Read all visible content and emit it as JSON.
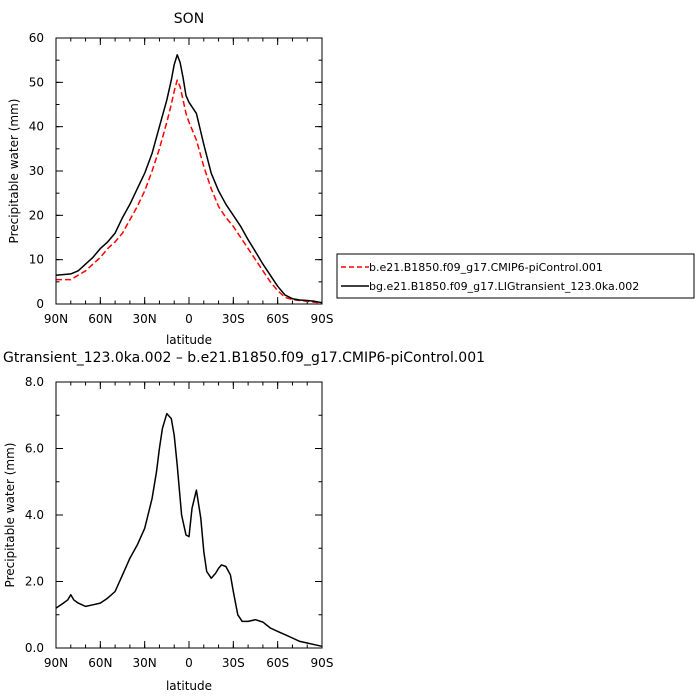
{
  "chart_data": [
    {
      "type": "line",
      "title": "SON",
      "xlabel": "latitude",
      "ylabel": "Precipitable water (mm)",
      "x_tick_labels": [
        "90N",
        "60N",
        "30N",
        "0",
        "30S",
        "60S",
        "90S"
      ],
      "x_tick_values": [
        90,
        60,
        30,
        0,
        -30,
        -60,
        -90
      ],
      "xlim": [
        90,
        -90
      ],
      "y_tick_labels": [
        "0",
        "10",
        "20",
        "30",
        "40",
        "50",
        "60"
      ],
      "y_tick_values": [
        0,
        10,
        20,
        30,
        40,
        50,
        60
      ],
      "ylim": [
        0,
        60
      ],
      "grid": false,
      "legend_position": "right",
      "series": [
        {
          "name": "b.e21.B1850.f09_g17.CMIP6-piControl.001",
          "color": "#ff0000",
          "dash": "dashed",
          "x": [
            90,
            80,
            75,
            70,
            60,
            55,
            50,
            45,
            40,
            35,
            30,
            25,
            20,
            15,
            12,
            10,
            8,
            6,
            4,
            2,
            0,
            -5,
            -10,
            -15,
            -20,
            -25,
            -30,
            -35,
            -40,
            -45,
            -50,
            -55,
            -60,
            -65,
            -70,
            -75,
            -80,
            -85,
            -90
          ],
          "y": [
            5.5,
            5.5,
            6.5,
            7.5,
            10.5,
            12.5,
            14,
            16,
            19,
            22,
            25.5,
            30,
            35,
            41,
            45,
            48,
            50.5,
            49,
            46,
            43,
            41,
            37,
            31,
            26,
            22,
            19.5,
            17.5,
            15,
            12.5,
            10,
            7.5,
            5,
            3,
            1.5,
            1,
            0.8,
            0.6,
            0.4,
            0.3
          ]
        },
        {
          "name": "bg.e21.B1850.f09_g17.LIGtransient_123.0ka.002",
          "color": "#000000",
          "dash": "solid",
          "x": [
            90,
            80,
            75,
            70,
            65,
            60,
            55,
            50,
            45,
            40,
            35,
            30,
            25,
            20,
            15,
            12,
            10,
            8,
            6,
            4,
            2,
            0,
            -5,
            -10,
            -15,
            -20,
            -25,
            -30,
            -35,
            -40,
            -45,
            -50,
            -55,
            -60,
            -65,
            -70,
            -75,
            -80,
            -85,
            -90
          ],
          "y": [
            6.5,
            6.8,
            7.5,
            9,
            10.5,
            12.5,
            14,
            16,
            19.5,
            22.5,
            26,
            29.5,
            34,
            40,
            46,
            50.5,
            54,
            56.2,
            54.5,
            51,
            47,
            45.5,
            43,
            36,
            29.5,
            25.5,
            22.5,
            20,
            17.5,
            14.5,
            11.8,
            9,
            6.5,
            4,
            2,
            1.2,
            0.9,
            0.8,
            0.6,
            0.3
          ]
        }
      ]
    },
    {
      "type": "line",
      "title": "Gtransient_123.0ka.002 – b.e21.B1850.f09_g17.CMIP6-piControl.001",
      "xlabel": "latitude",
      "ylabel": "Precipitable water (mm)",
      "x_tick_labels": [
        "90N",
        "60N",
        "30N",
        "0",
        "30S",
        "60S",
        "90S"
      ],
      "x_tick_values": [
        90,
        60,
        30,
        0,
        -30,
        -60,
        -90
      ],
      "xlim": [
        90,
        -90
      ],
      "y_tick_labels": [
        "0.0",
        "2.0",
        "4.0",
        "6.0",
        "8.0"
      ],
      "y_tick_values": [
        0,
        2,
        4,
        6,
        8
      ],
      "ylim": [
        0,
        8
      ],
      "grid": false,
      "series": [
        {
          "color": "#000000",
          "dash": "solid",
          "x": [
            90,
            85,
            82,
            80,
            78,
            75,
            70,
            65,
            60,
            55,
            50,
            45,
            40,
            35,
            30,
            25,
            22,
            20,
            18,
            15,
            12,
            10,
            8,
            5,
            2,
            0,
            -2,
            -5,
            -8,
            -10,
            -12,
            -15,
            -18,
            -20,
            -22,
            -25,
            -28,
            -30,
            -33,
            -36,
            -40,
            -45,
            -50,
            -55,
            -60,
            -65,
            -70,
            -75,
            -80,
            -85,
            -90
          ],
          "y": [
            1.2,
            1.35,
            1.45,
            1.6,
            1.45,
            1.35,
            1.25,
            1.3,
            1.35,
            1.5,
            1.7,
            2.2,
            2.7,
            3.1,
            3.6,
            4.5,
            5.3,
            6.0,
            6.6,
            7.05,
            6.9,
            6.4,
            5.5,
            4.0,
            3.4,
            3.35,
            4.2,
            4.75,
            3.9,
            2.9,
            2.3,
            2.1,
            2.25,
            2.4,
            2.5,
            2.45,
            2.2,
            1.7,
            1.0,
            0.8,
            0.8,
            0.85,
            0.78,
            0.6,
            0.5,
            0.4,
            0.3,
            0.2,
            0.15,
            0.1,
            0.05
          ]
        }
      ]
    }
  ]
}
